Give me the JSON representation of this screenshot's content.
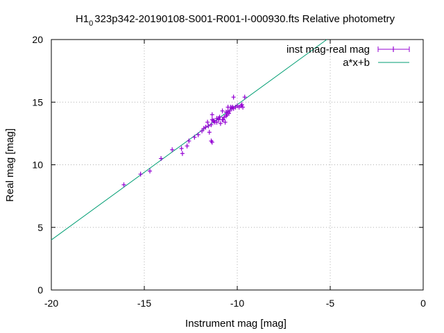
{
  "chart_data": {
    "type": "scatter",
    "title_parts": {
      "prefix": "H1",
      "subscript": "0",
      "rest": "323p342-20190108-S001-R001-I-000930.fts Relative photometry"
    },
    "xlabel": "Instrument mag [mag]",
    "ylabel": "Real mag [mag]",
    "xlim": [
      -20,
      0
    ],
    "ylim": [
      0,
      20
    ],
    "xticks": [
      -20,
      -15,
      -10,
      -5,
      0
    ],
    "yticks": [
      0,
      5,
      10,
      15,
      20
    ],
    "legend_position": "top-right",
    "series": [
      {
        "name": "inst mag-real mag",
        "kind": "points-with-errorbars",
        "color": "#9400d3",
        "points": [
          [
            -16.1,
            8.4
          ],
          [
            -15.2,
            9.25
          ],
          [
            -14.7,
            9.5
          ],
          [
            -14.1,
            10.5
          ],
          [
            -13.5,
            11.2
          ],
          [
            -13.0,
            11.3
          ],
          [
            -12.95,
            10.9
          ],
          [
            -12.7,
            11.5
          ],
          [
            -12.6,
            11.9
          ],
          [
            -12.3,
            12.2
          ],
          [
            -12.1,
            12.4
          ],
          [
            -11.9,
            12.7
          ],
          [
            -11.8,
            12.9
          ],
          [
            -11.7,
            13.0
          ],
          [
            -11.6,
            13.4
          ],
          [
            -11.5,
            12.6
          ],
          [
            -11.4,
            11.9
          ],
          [
            -11.35,
            11.8
          ],
          [
            -11.4,
            13.2
          ],
          [
            -11.3,
            13.5
          ],
          [
            -11.2,
            13.4
          ],
          [
            -11.35,
            13.6
          ],
          [
            -11.25,
            13.5
          ],
          [
            -11.35,
            14.0
          ],
          [
            -11.1,
            13.7
          ],
          [
            -11.0,
            13.6
          ],
          [
            -10.95,
            13.8
          ],
          [
            -10.9,
            13.3
          ],
          [
            -10.8,
            14.3
          ],
          [
            -10.75,
            13.6
          ],
          [
            -10.7,
            13.8
          ],
          [
            -10.65,
            13.4
          ],
          [
            -10.6,
            13.9
          ],
          [
            -10.55,
            14.0
          ],
          [
            -10.5,
            14.3
          ],
          [
            -10.45,
            14.1
          ],
          [
            -10.4,
            14.3
          ],
          [
            -10.35,
            14.6
          ],
          [
            -10.3,
            14.5
          ],
          [
            -10.25,
            14.6
          ],
          [
            -10.2,
            15.4
          ],
          [
            -10.2,
            14.5
          ],
          [
            -10.1,
            14.6
          ],
          [
            -10.0,
            14.7
          ],
          [
            -9.9,
            14.6
          ],
          [
            -9.8,
            14.7
          ],
          [
            -9.7,
            14.6
          ],
          [
            -9.75,
            14.8
          ],
          [
            -9.6,
            15.4
          ],
          [
            -10.5,
            14.6
          ],
          [
            -10.6,
            14.2
          ],
          [
            -10.8,
            13.6
          ],
          [
            -11.1,
            13.4
          ],
          [
            -11.55,
            13.1
          ],
          [
            -11.0,
            13.7
          ]
        ]
      },
      {
        "name": "a*x+b",
        "kind": "line",
        "color": "#009e73",
        "slope": 1.08,
        "intercept": 25.6
      }
    ]
  }
}
